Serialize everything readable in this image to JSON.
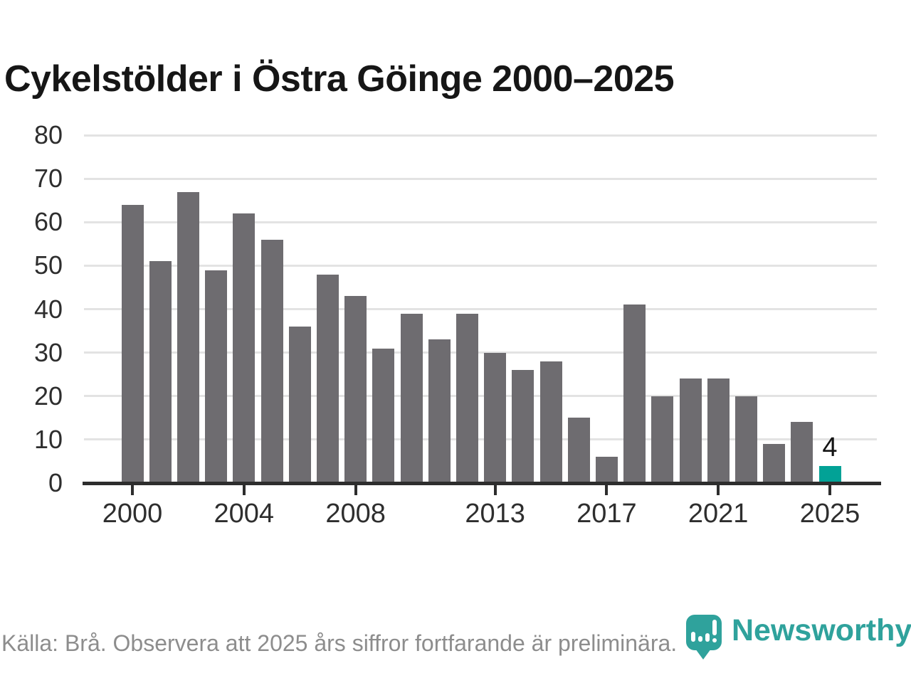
{
  "title": "Cykelstölder i Östra Göinge 2000–2025",
  "footer": {
    "source_note": "Källa: Brå. Observera att 2025 års siffror fortfarande är preliminära."
  },
  "branding": {
    "logo_text": "Newsworthy",
    "logo_icon": "bar-chart-pin-icon",
    "logo_color": "#2fa29c"
  },
  "colors": {
    "bar": "#6e6c70",
    "highlight_bar": "#02a296",
    "gridline": "#e3e3e3",
    "axis": "#2d2d2d",
    "title_text": "#161616",
    "tick_text": "#2e2e2e",
    "footer_text": "#8d8d8d"
  },
  "chart_data": {
    "type": "bar",
    "title": "Cykelstölder i Östra Göinge 2000–2025",
    "categories": [
      2000,
      2001,
      2002,
      2003,
      2004,
      2005,
      2006,
      2007,
      2008,
      2009,
      2010,
      2011,
      2012,
      2013,
      2014,
      2015,
      2016,
      2017,
      2018,
      2019,
      2020,
      2021,
      2022,
      2023,
      2024,
      2025
    ],
    "values": [
      64,
      51,
      67,
      49,
      62,
      56,
      36,
      48,
      43,
      31,
      39,
      33,
      39,
      30,
      26,
      28,
      15,
      6,
      41,
      20,
      24,
      24,
      20,
      9,
      14,
      4
    ],
    "highlight_index": 25,
    "highlight_label": "4",
    "xlabel": "",
    "ylabel": "",
    "ylim": [
      0,
      80
    ],
    "ytick_interval": 10,
    "yticks": [
      0,
      10,
      20,
      30,
      40,
      50,
      60,
      70,
      80
    ],
    "xticks_shown": [
      2000,
      2004,
      2008,
      2013,
      2017,
      2021,
      2025
    ],
    "grid": true,
    "legend": "none"
  }
}
